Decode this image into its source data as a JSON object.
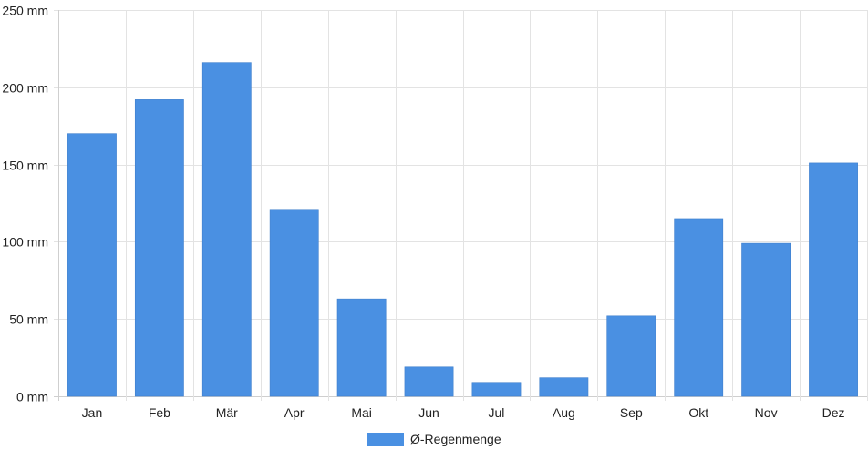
{
  "chart_data": {
    "type": "bar",
    "categories": [
      "Jan",
      "Feb",
      "Mär",
      "Apr",
      "Mai",
      "Jun",
      "Jul",
      "Aug",
      "Sep",
      "Okt",
      "Nov",
      "Dez"
    ],
    "series": [
      {
        "name": "Ø-Regenmenge",
        "values": [
          170,
          192,
          216,
          121,
          63,
          19,
          9,
          12,
          52,
          115,
          99,
          151
        ],
        "color": "#4a90e2"
      }
    ],
    "y_ticks": [
      "0 mm",
      "50 mm",
      "100 mm",
      "150 mm",
      "200 mm",
      "250 mm"
    ],
    "y_tick_values": [
      0,
      50,
      100,
      150,
      200,
      250
    ],
    "ylim": [
      0,
      250
    ],
    "unit": "mm",
    "grid": true,
    "legend_position": "bottom"
  }
}
